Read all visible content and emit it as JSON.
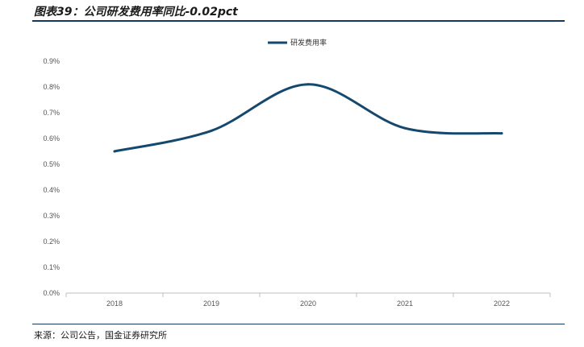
{
  "figure": {
    "title": "图表39：公司研发费用率同比-0.02pct",
    "source": "来源：公司公告，国金证券研究所"
  },
  "colors": {
    "series": "#15486e",
    "axis": "#bfbfbf",
    "rule": "#14365f"
  },
  "chart_data": {
    "type": "line",
    "categories": [
      "2018",
      "2019",
      "2020",
      "2021",
      "2022"
    ],
    "series": [
      {
        "name": "研发费用率",
        "values": [
          0.55,
          0.63,
          0.81,
          0.64,
          0.62
        ]
      }
    ],
    "ylim": [
      0,
      0.9
    ],
    "yticks": [
      "0.0%",
      "0.1%",
      "0.2%",
      "0.3%",
      "0.4%",
      "0.5%",
      "0.6%",
      "0.7%",
      "0.8%",
      "0.9%"
    ],
    "y_unit": "%",
    "smooth": true,
    "grid": false,
    "legend": "top-center"
  }
}
